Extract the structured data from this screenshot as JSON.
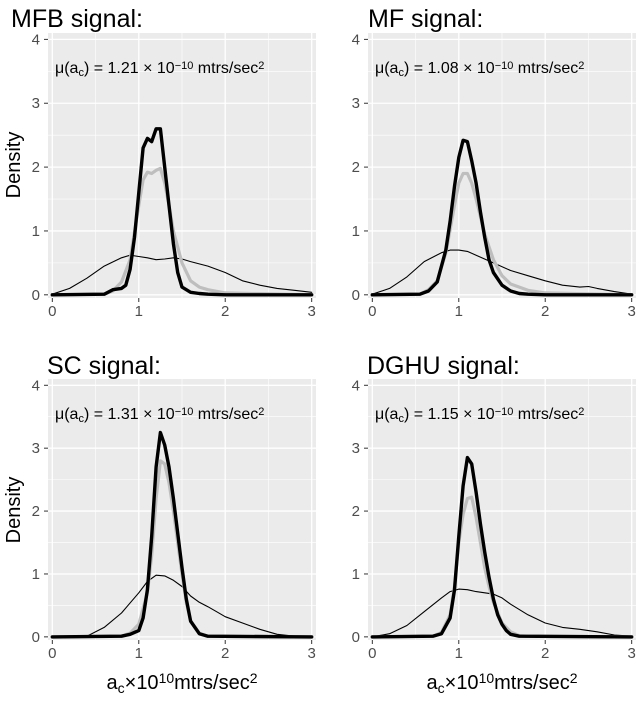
{
  "figure": {
    "ylabel": "Density",
    "xlabel": {
      "base": "a",
      "sub": "c",
      "times": "×",
      "ten": "10",
      "exp": "10",
      "unit": "mtrs/sec",
      "unit_exp": "2"
    }
  },
  "colors": {
    "panel_bg": "#ebebeb",
    "grid": "#ffffff",
    "thick": "#000000",
    "grey": "#bebebe",
    "thin": "#000000"
  },
  "chart_data": [
    {
      "type": "line",
      "title": "MFB signal:",
      "annotation": {
        "mu": "μ(a",
        "sub": "c",
        "eq": ") = 1.21 × 10",
        "exp": "−10",
        "unit": " mtrs/sec",
        "unit_exp": "2"
      },
      "xlim": [
        -0.05,
        3.05
      ],
      "ylim": [
        -0.05,
        4.1
      ],
      "xticks": [
        "0",
        "1",
        "2",
        "3"
      ],
      "yticks": [
        "0",
        "1",
        "2",
        "3",
        "4"
      ],
      "series": [
        {
          "name": "thin",
          "x": [
            0,
            0.2,
            0.4,
            0.6,
            0.8,
            0.9,
            1.0,
            1.1,
            1.2,
            1.3,
            1.4,
            1.5,
            1.6,
            1.8,
            2.0,
            2.2,
            2.4,
            2.6,
            2.8,
            3.0
          ],
          "y": [
            0.01,
            0.1,
            0.26,
            0.45,
            0.58,
            0.62,
            0.6,
            0.58,
            0.55,
            0.56,
            0.58,
            0.56,
            0.52,
            0.45,
            0.35,
            0.22,
            0.15,
            0.1,
            0.07,
            0.04
          ]
        },
        {
          "name": "grey",
          "x": [
            0,
            0.6,
            0.7,
            0.8,
            0.9,
            1.0,
            1.05,
            1.1,
            1.15,
            1.2,
            1.25,
            1.3,
            1.35,
            1.4,
            1.5,
            1.6,
            1.7,
            1.8,
            2.0,
            3.0
          ],
          "y": [
            0,
            0.01,
            0.06,
            0.2,
            0.55,
            1.4,
            1.8,
            1.92,
            1.9,
            1.95,
            1.98,
            1.75,
            1.4,
            1.0,
            0.5,
            0.22,
            0.12,
            0.08,
            0.03,
            0
          ]
        },
        {
          "name": "thick",
          "x": [
            0,
            0.6,
            0.7,
            0.8,
            0.85,
            0.9,
            0.95,
            1.0,
            1.05,
            1.1,
            1.15,
            1.2,
            1.25,
            1.3,
            1.35,
            1.4,
            1.45,
            1.5,
            1.6,
            1.7,
            1.8,
            2.0,
            3.0
          ],
          "y": [
            0,
            0.01,
            0.08,
            0.1,
            0.15,
            0.4,
            0.9,
            1.6,
            2.3,
            2.45,
            2.4,
            2.6,
            2.6,
            2.0,
            1.4,
            0.8,
            0.35,
            0.12,
            0.04,
            0.02,
            0.01,
            0,
            0
          ]
        }
      ]
    },
    {
      "type": "line",
      "title": "MF signal:",
      "annotation": {
        "mu": "μ(a",
        "sub": "c",
        "eq": ") = 1.08 × 10",
        "exp": "−10",
        "unit": " mtrs/sec",
        "unit_exp": "2"
      },
      "xlim": [
        -0.05,
        3.05
      ],
      "ylim": [
        -0.05,
        4.1
      ],
      "xticks": [
        "0",
        "1",
        "2",
        "3"
      ],
      "yticks": [
        "0",
        "1",
        "2",
        "3",
        "4"
      ],
      "series": [
        {
          "name": "thin",
          "x": [
            0,
            0.2,
            0.4,
            0.6,
            0.8,
            0.9,
            1.0,
            1.1,
            1.2,
            1.4,
            1.6,
            1.8,
            2.0,
            2.2,
            2.4,
            2.5,
            2.6,
            2.8,
            3.0
          ],
          "y": [
            0.01,
            0.1,
            0.28,
            0.52,
            0.66,
            0.7,
            0.7,
            0.68,
            0.62,
            0.5,
            0.38,
            0.3,
            0.22,
            0.15,
            0.12,
            0.13,
            0.1,
            0.05,
            0.01
          ]
        },
        {
          "name": "grey",
          "x": [
            0,
            0.55,
            0.65,
            0.75,
            0.85,
            0.95,
            1.0,
            1.05,
            1.1,
            1.15,
            1.2,
            1.3,
            1.4,
            1.5,
            1.6,
            1.7,
            1.8,
            2.0,
            3.0
          ],
          "y": [
            0,
            0.01,
            0.08,
            0.22,
            0.65,
            1.4,
            1.75,
            1.9,
            1.9,
            1.75,
            1.5,
            0.95,
            0.55,
            0.3,
            0.17,
            0.12,
            0.07,
            0.03,
            0
          ]
        },
        {
          "name": "thick",
          "x": [
            0,
            0.55,
            0.65,
            0.75,
            0.85,
            0.9,
            0.95,
            1.0,
            1.05,
            1.1,
            1.15,
            1.2,
            1.25,
            1.3,
            1.35,
            1.4,
            1.5,
            1.6,
            1.7,
            1.8,
            2.0,
            3.0
          ],
          "y": [
            0,
            0.01,
            0.06,
            0.2,
            0.7,
            1.15,
            1.7,
            2.15,
            2.42,
            2.4,
            2.1,
            1.75,
            1.3,
            0.9,
            0.55,
            0.35,
            0.15,
            0.06,
            0.02,
            0.01,
            0,
            0
          ]
        }
      ]
    },
    {
      "type": "line",
      "title": "SC signal:",
      "annotation": {
        "mu": "μ(a",
        "sub": "c",
        "eq": ") = 1.31 × 10",
        "exp": "−10",
        "unit": " mtrs/sec",
        "unit_exp": "2"
      },
      "xlim": [
        -0.05,
        3.05
      ],
      "ylim": [
        -0.05,
        4.1
      ],
      "xticks": [
        "0",
        "1",
        "2",
        "3"
      ],
      "yticks": [
        "0",
        "1",
        "2",
        "3",
        "4"
      ],
      "series": [
        {
          "name": "thin",
          "x": [
            0,
            0.4,
            0.6,
            0.8,
            1.0,
            1.1,
            1.2,
            1.3,
            1.4,
            1.5,
            1.6,
            1.7,
            1.8,
            1.9,
            2.0,
            2.2,
            2.4,
            2.6,
            2.8,
            3.0
          ],
          "y": [
            0,
            0.01,
            0.15,
            0.38,
            0.7,
            0.88,
            0.98,
            0.97,
            0.9,
            0.8,
            0.65,
            0.55,
            0.48,
            0.4,
            0.32,
            0.22,
            0.12,
            0.04,
            0.01,
            0
          ]
        },
        {
          "name": "grey",
          "x": [
            0,
            0.8,
            0.9,
            1.0,
            1.1,
            1.15,
            1.2,
            1.25,
            1.3,
            1.35,
            1.4,
            1.45,
            1.5,
            1.55,
            1.6,
            1.7,
            1.8,
            3.0
          ],
          "y": [
            0,
            0.01,
            0.06,
            0.2,
            0.7,
            1.3,
            2.2,
            2.8,
            2.75,
            2.45,
            2.0,
            1.5,
            1.0,
            0.55,
            0.25,
            0.06,
            0.01,
            0
          ]
        },
        {
          "name": "thick",
          "x": [
            0,
            0.8,
            0.9,
            1.0,
            1.05,
            1.1,
            1.15,
            1.2,
            1.25,
            1.3,
            1.35,
            1.4,
            1.45,
            1.5,
            1.55,
            1.6,
            1.7,
            1.8,
            3.0
          ],
          "y": [
            0,
            0.01,
            0.04,
            0.1,
            0.3,
            0.75,
            1.6,
            2.7,
            3.25,
            3.05,
            2.7,
            2.2,
            1.65,
            1.1,
            0.6,
            0.25,
            0.05,
            0.01,
            0
          ]
        }
      ]
    },
    {
      "type": "line",
      "title": "DGHU signal:",
      "annotation": {
        "mu": "μ(a",
        "sub": "c",
        "eq": ") = 1.15 × 10",
        "exp": "−10",
        "unit": " mtrs/sec",
        "unit_exp": "2"
      },
      "xlim": [
        -0.05,
        3.05
      ],
      "ylim": [
        -0.05,
        4.1
      ],
      "xticks": [
        "0",
        "1",
        "2",
        "3"
      ],
      "yticks": [
        "0",
        "1",
        "2",
        "3",
        "4"
      ],
      "series": [
        {
          "name": "thin",
          "x": [
            0,
            0.2,
            0.4,
            0.6,
            0.8,
            0.9,
            1.0,
            1.1,
            1.2,
            1.3,
            1.4,
            1.5,
            1.6,
            1.8,
            2.0,
            2.2,
            2.4,
            2.6,
            2.8,
            3.0
          ],
          "y": [
            0,
            0.05,
            0.18,
            0.4,
            0.62,
            0.72,
            0.76,
            0.75,
            0.72,
            0.7,
            0.68,
            0.62,
            0.52,
            0.35,
            0.22,
            0.15,
            0.12,
            0.08,
            0.03,
            0.01
          ]
        },
        {
          "name": "grey",
          "x": [
            0,
            0.7,
            0.8,
            0.9,
            0.95,
            1.0,
            1.05,
            1.1,
            1.15,
            1.2,
            1.25,
            1.3,
            1.35,
            1.4,
            1.5,
            1.6,
            1.7,
            1.8,
            3.0
          ],
          "y": [
            0,
            0.01,
            0.07,
            0.35,
            0.8,
            1.5,
            1.95,
            2.2,
            2.22,
            1.9,
            1.5,
            1.1,
            0.8,
            0.55,
            0.22,
            0.08,
            0.02,
            0.01,
            0
          ]
        },
        {
          "name": "thick",
          "x": [
            0,
            0.7,
            0.8,
            0.9,
            0.95,
            1.0,
            1.05,
            1.1,
            1.15,
            1.2,
            1.25,
            1.3,
            1.35,
            1.4,
            1.45,
            1.5,
            1.55,
            1.6,
            1.7,
            3.0
          ],
          "y": [
            0,
            0.01,
            0.05,
            0.3,
            0.75,
            1.6,
            2.4,
            2.85,
            2.75,
            2.3,
            1.8,
            1.35,
            0.95,
            0.6,
            0.35,
            0.2,
            0.1,
            0.04,
            0.01,
            0
          ]
        }
      ]
    }
  ]
}
